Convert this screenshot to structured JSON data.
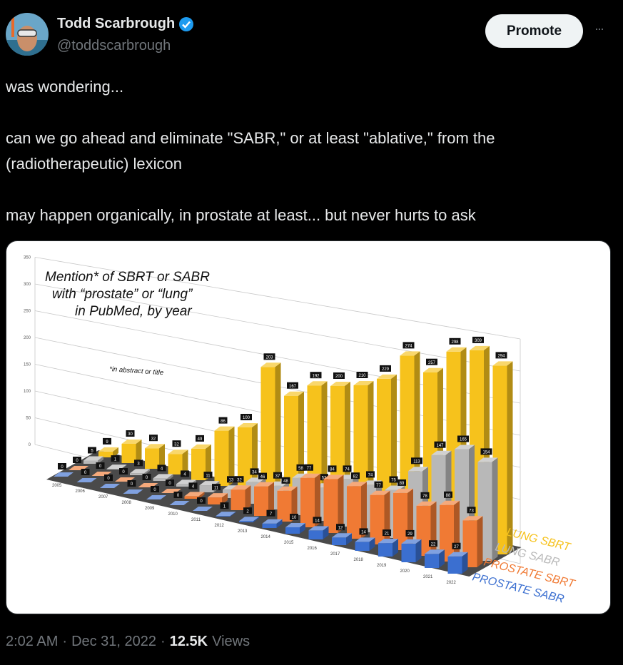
{
  "author": {
    "name": "Todd Scarbrough",
    "handle": "@toddscarbrough",
    "verified": true
  },
  "actions": {
    "promote": "Promote",
    "more": "···"
  },
  "tweet": {
    "paragraphs": [
      "was wondering...",
      "can we go ahead and eliminate \"SABR,\" or at least \"ablative,\" from the (radiotherapeutic) lexicon",
      "may happen organically, in prostate at least... but never hurts to ask"
    ]
  },
  "chart_data": {
    "type": "bar3d",
    "title": [
      "Mention* of SBRT or SABR",
      "with “prostate” or “lung”",
      "in PubMed, by year"
    ],
    "note": "*in abstract or title",
    "categories": [
      "2005",
      "2006",
      "2007",
      "2008",
      "2009",
      "2010",
      "2011",
      "2012",
      "2013",
      "2014",
      "2015",
      "2016",
      "2017",
      "2018",
      "2019",
      "2020",
      "2021",
      "2022"
    ],
    "series": [
      {
        "name": "LUNG SBRT",
        "color": "#f6c21c",
        "values": [
          9,
          30,
          32,
          32,
          49,
          86,
          100,
          203,
          167,
          192,
          200,
          210,
          229,
          274,
          257,
          298,
          309,
          294
        ]
      },
      {
        "name": "LUNG SABR",
        "color": "#b8b8b8",
        "values": [
          5,
          1,
          3,
          4,
          4,
          11,
          13,
          34,
          37,
          58,
          52,
          74,
          74,
          75,
          113,
          147,
          165,
          154
        ]
      },
      {
        "name": "PROSTATE SBRT",
        "color": "#f07a34",
        "values": [
          0,
          0,
          0,
          0,
          0,
          4,
          11,
          32,
          46,
          48,
          77,
          84,
          82,
          77,
          89,
          78,
          88,
          73
        ]
      },
      {
        "name": "PROSTATE SABR",
        "color": "#3b6fd0",
        "values": [
          0,
          0,
          0,
          0,
          0,
          0,
          0,
          1,
          2,
          7,
          10,
          14,
          12,
          14,
          21,
          29,
          22,
          27
        ]
      }
    ],
    "ylim": [
      0,
      350
    ],
    "yticks": [
      0,
      50,
      100,
      150,
      200,
      250,
      300,
      350
    ],
    "grid": true
  },
  "footer": {
    "time": "2:02 AM",
    "separator": "·",
    "date": "Dec 31, 2022",
    "views_count": "12.5K",
    "views_label": "Views"
  }
}
